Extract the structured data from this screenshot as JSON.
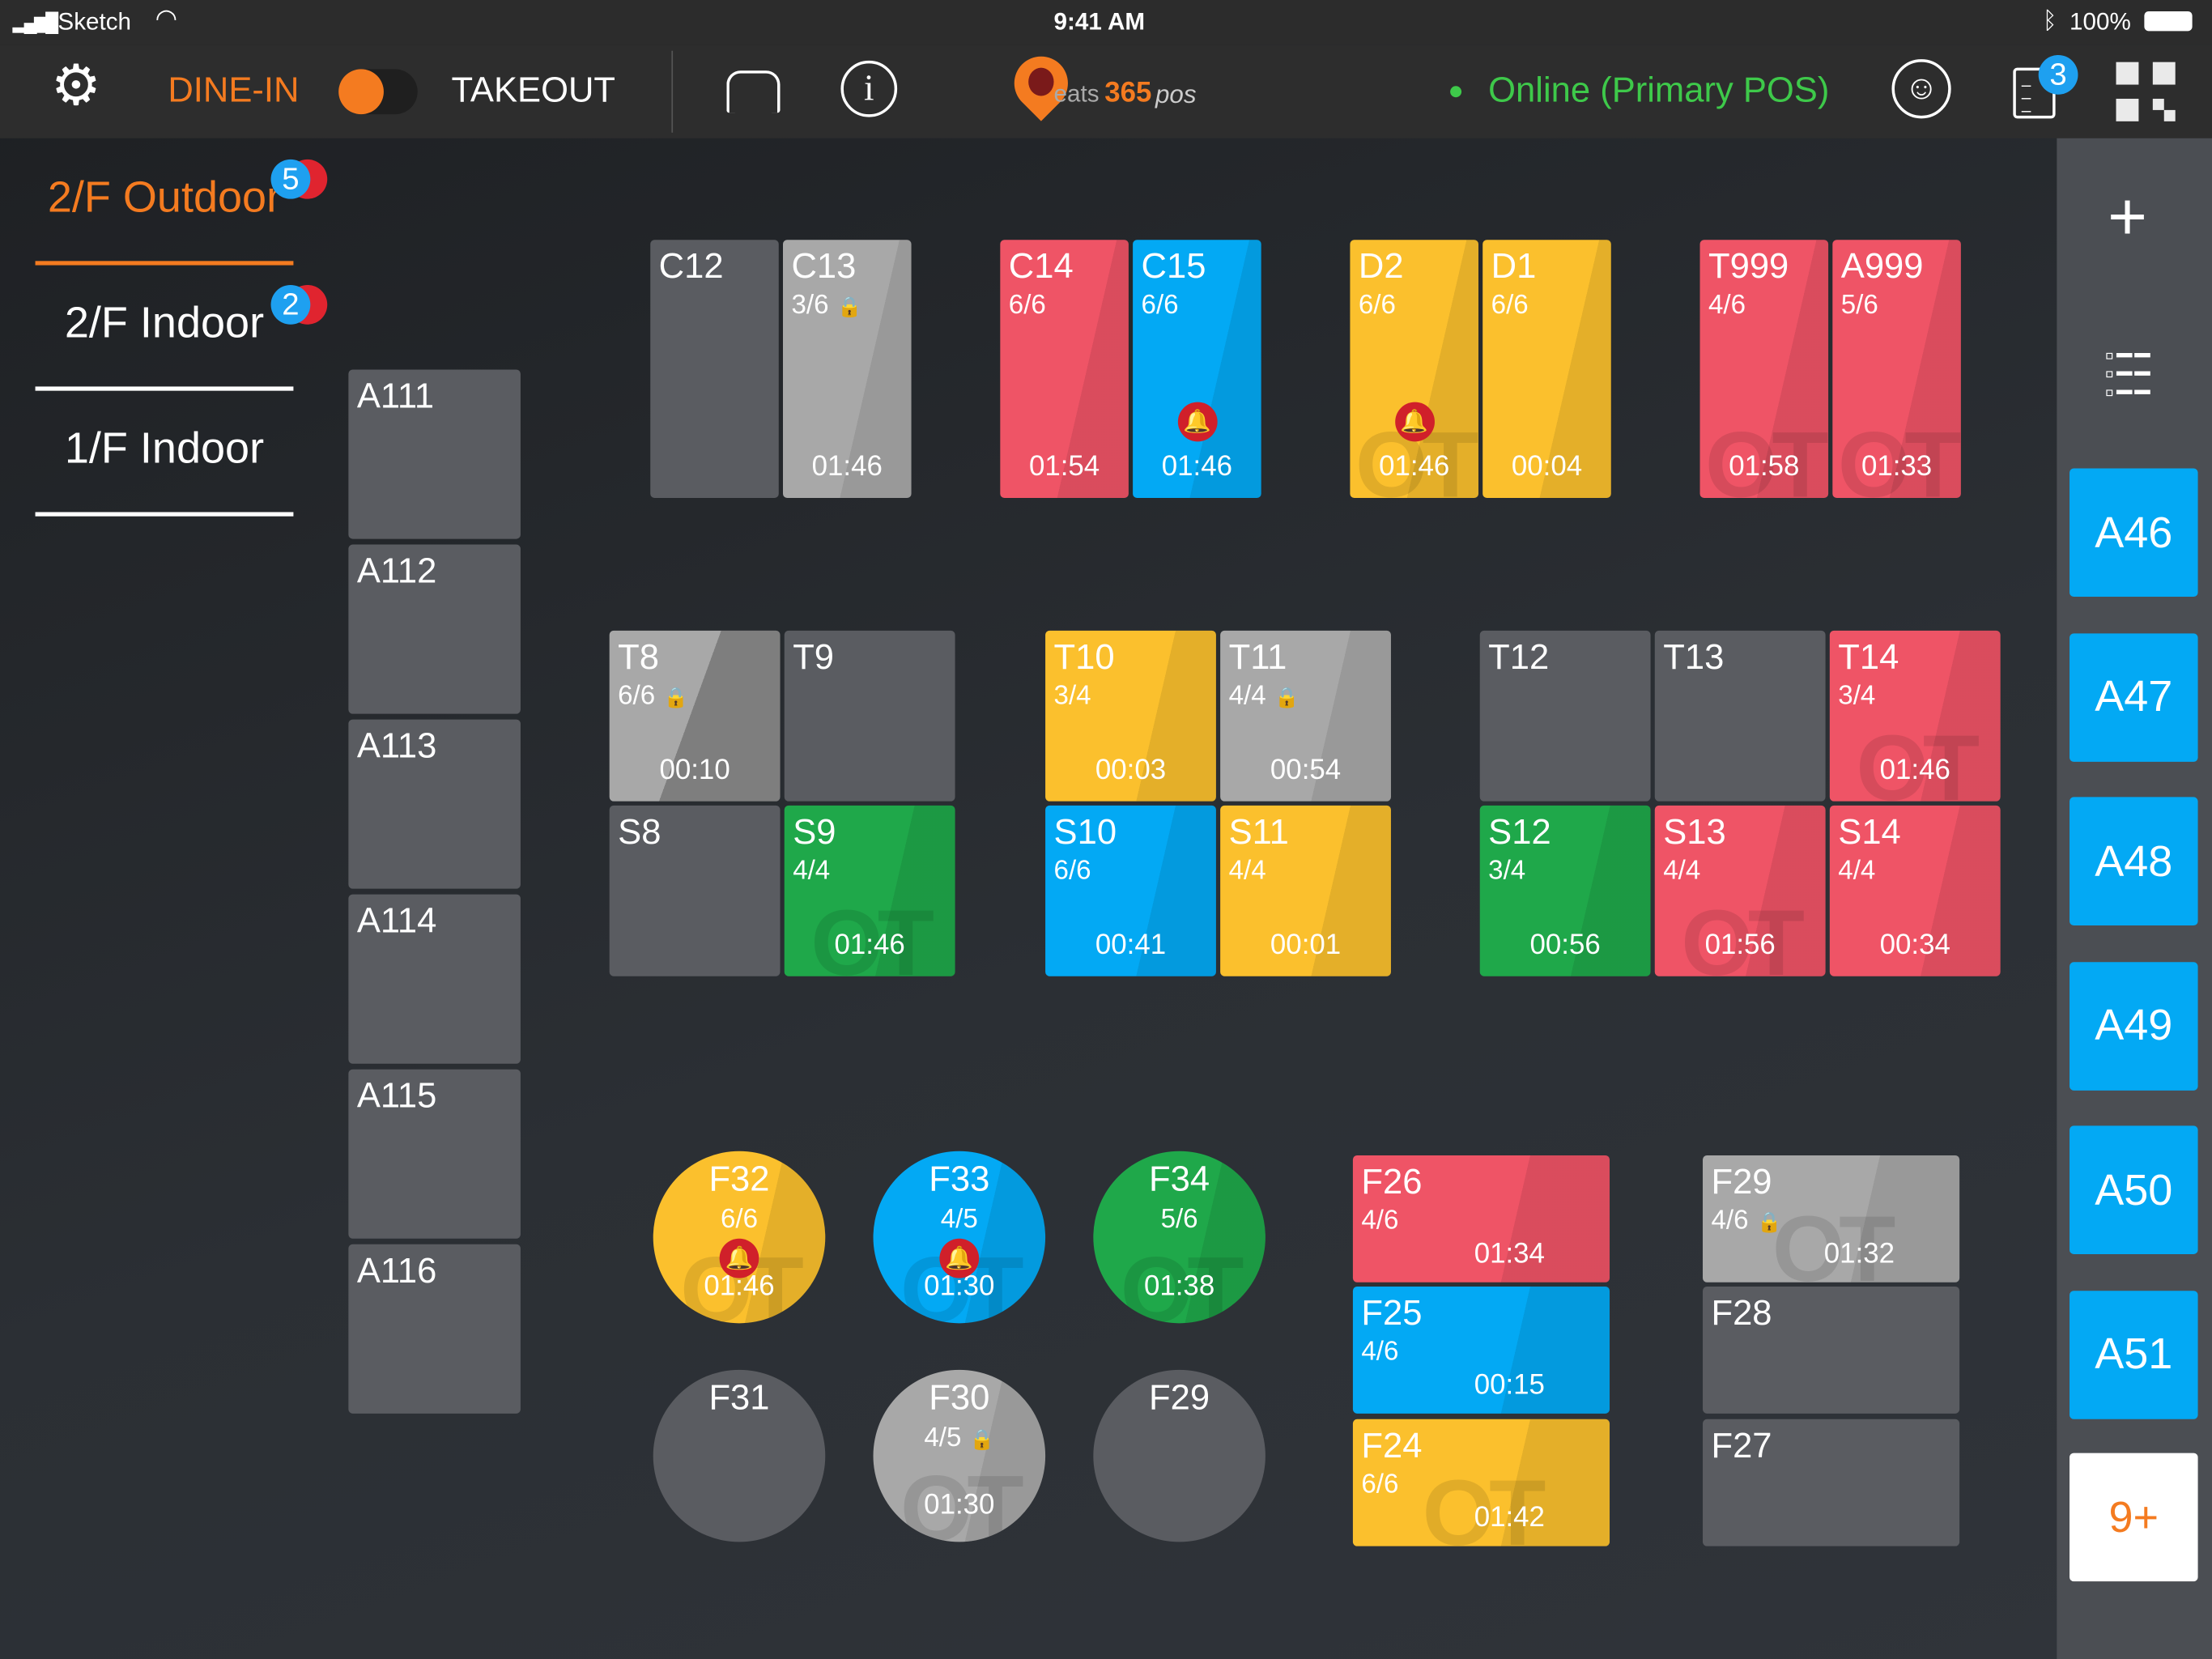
{
  "status_bar": {
    "carrier": "Sketch",
    "time": "9:41 AM",
    "battery": "100%"
  },
  "toolbar": {
    "dine_in": "DINE-IN",
    "takeout": "TAKEOUT",
    "logo_text_a": "eats",
    "logo_text_b": "365",
    "logo_text_c": "pos",
    "online_status": "Online (Primary POS)",
    "orders_badge": "3",
    "accent": "#f47b20",
    "online_color": "#3ec94a"
  },
  "floors": [
    {
      "label": "2/F Outdoor",
      "badge": "5",
      "active": true
    },
    {
      "label": "2/F Indoor",
      "badge": "2",
      "active": false
    },
    {
      "label": "1/F Indoor",
      "badge": null,
      "active": false
    }
  ],
  "left_column": [
    "A111",
    "A112",
    "A113",
    "A114",
    "A115",
    "A116"
  ],
  "sidebar": {
    "queue": [
      "A46",
      "A47",
      "A48",
      "A49",
      "A50",
      "A51"
    ],
    "more": "9+"
  },
  "colors": {
    "empty": "#5a5c61",
    "locked": "#a8a8a8",
    "red": "#ef5466",
    "blue": "#03a9f4",
    "yellow": "#fbc02d",
    "green": "#1fa84a"
  },
  "tables": [
    {
      "name": "C12",
      "status": "empty"
    },
    {
      "name": "C13",
      "seats": "3/6",
      "time": "01:46",
      "status": "locked",
      "lock": true
    },
    {
      "name": "C14",
      "seats": "6/6",
      "time": "01:54",
      "status": "red"
    },
    {
      "name": "C15",
      "seats": "6/6",
      "time": "01:46",
      "status": "blue",
      "bell": true
    },
    {
      "name": "D2",
      "seats": "6/6",
      "time": "01:46",
      "status": "yellow",
      "bell": true,
      "ot": true
    },
    {
      "name": "D1",
      "seats": "6/6",
      "time": "00:04",
      "status": "yellow"
    },
    {
      "name": "T999",
      "seats": "4/6",
      "time": "01:58",
      "status": "red",
      "ot": true
    },
    {
      "name": "A999",
      "seats": "5/6",
      "time": "01:33",
      "status": "red",
      "ot": true
    },
    {
      "name": "T8",
      "seats": "6/6",
      "time": "00:10",
      "status": "locked",
      "lock": true
    },
    {
      "name": "T9",
      "status": "empty"
    },
    {
      "name": "T10",
      "seats": "3/4",
      "time": "00:03",
      "status": "yellow"
    },
    {
      "name": "T11",
      "seats": "4/4",
      "time": "00:54",
      "status": "locked",
      "lock": true
    },
    {
      "name": "T12",
      "status": "empty"
    },
    {
      "name": "T13",
      "status": "empty"
    },
    {
      "name": "T14",
      "seats": "3/4",
      "time": "01:46",
      "status": "red",
      "ot": true
    },
    {
      "name": "S8",
      "status": "empty"
    },
    {
      "name": "S9",
      "seats": "4/4",
      "time": "01:46",
      "status": "green",
      "ot": true
    },
    {
      "name": "S10",
      "seats": "6/6",
      "time": "00:41",
      "status": "blue"
    },
    {
      "name": "S11",
      "seats": "4/4",
      "time": "00:01",
      "status": "yellow"
    },
    {
      "name": "S12",
      "seats": "3/4",
      "time": "00:56",
      "status": "green"
    },
    {
      "name": "S13",
      "seats": "4/4",
      "time": "01:56",
      "status": "red",
      "ot": true
    },
    {
      "name": "S14",
      "seats": "4/4",
      "time": "00:34",
      "status": "red"
    },
    {
      "name": "F32",
      "seats": "6/6",
      "time": "01:46",
      "status": "yellow",
      "bell": true,
      "ot": true
    },
    {
      "name": "F33",
      "seats": "4/5",
      "time": "01:30",
      "status": "blue",
      "bell": true,
      "ot": true
    },
    {
      "name": "F34",
      "seats": "5/6",
      "time": "01:38",
      "status": "green",
      "ot": true
    },
    {
      "name": "F31",
      "status": "empty"
    },
    {
      "name": "F30",
      "seats": "4/5",
      "time": "01:30",
      "status": "locked",
      "lock": true,
      "ot": true
    },
    {
      "name": "F29",
      "status": "empty"
    },
    {
      "name": "F26",
      "seats": "4/6",
      "time": "01:34",
      "status": "red"
    },
    {
      "name": "F25",
      "seats": "4/6",
      "time": "00:15",
      "status": "blue"
    },
    {
      "name": "F24",
      "seats": "6/6",
      "time": "01:42",
      "status": "yellow",
      "ot": true
    },
    {
      "name": "F29",
      "seats": "4/6",
      "time": "01:32",
      "status": "locked",
      "lock": true,
      "ot": true
    },
    {
      "name": "F28",
      "status": "empty"
    },
    {
      "name": "F27",
      "status": "empty"
    }
  ]
}
